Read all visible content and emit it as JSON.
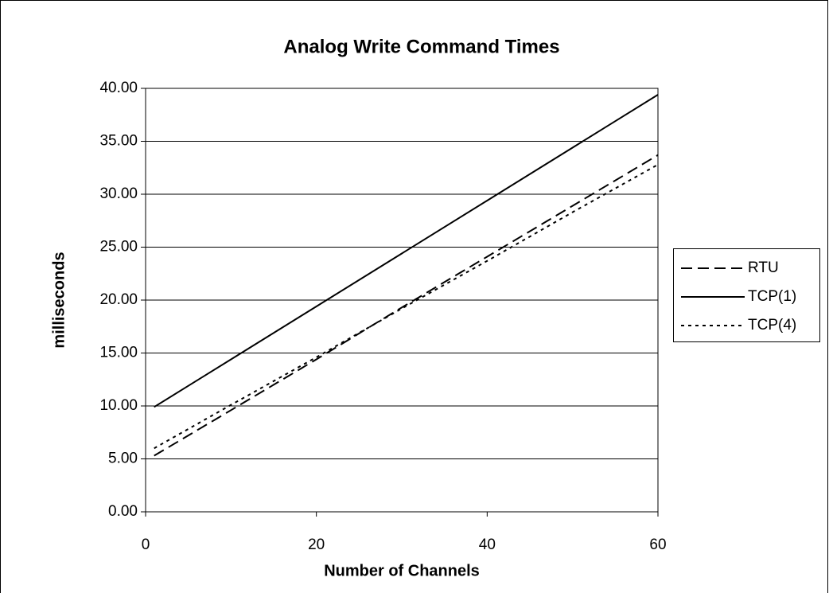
{
  "chart_data": {
    "type": "line",
    "title": "Analog Write Command Times",
    "x_label": "Number of Channels",
    "y_label": "milliseconds",
    "x": [
      1,
      10,
      20,
      30,
      40,
      50,
      60
    ],
    "series": [
      {
        "name": "RTU",
        "color": "#000000",
        "dash": "dashed",
        "values": [
          5.3,
          9.6,
          14.4,
          19.3,
          24.1,
          28.9,
          33.7
        ]
      },
      {
        "name": "TCP(1)",
        "color": "#000000",
        "dash": "solid",
        "values": [
          9.9,
          14.4,
          19.4,
          24.4,
          29.4,
          34.4,
          39.4
        ]
      },
      {
        "name": "TCP(4)",
        "color": "#000000",
        "dash": "dotted",
        "values": [
          6.0,
          10.1,
          14.6,
          19.2,
          23.7,
          28.3,
          32.8
        ]
      }
    ],
    "xlim": [
      0,
      60
    ],
    "xticks": [
      0,
      20,
      40,
      60
    ],
    "ylim": [
      0,
      40
    ],
    "yticks": [
      {
        "value": 0,
        "label": "0.00"
      },
      {
        "value": 5,
        "label": "5.00"
      },
      {
        "value": 10,
        "label": "10.00"
      },
      {
        "value": 15,
        "label": "15.00"
      },
      {
        "value": 20,
        "label": "20.00"
      },
      {
        "value": 25,
        "label": "25.00"
      },
      {
        "value": 30,
        "label": "30.00"
      },
      {
        "value": 35,
        "label": "35.00"
      },
      {
        "value": 40,
        "label": "40.00"
      }
    ],
    "grid": true,
    "legend": "right"
  }
}
